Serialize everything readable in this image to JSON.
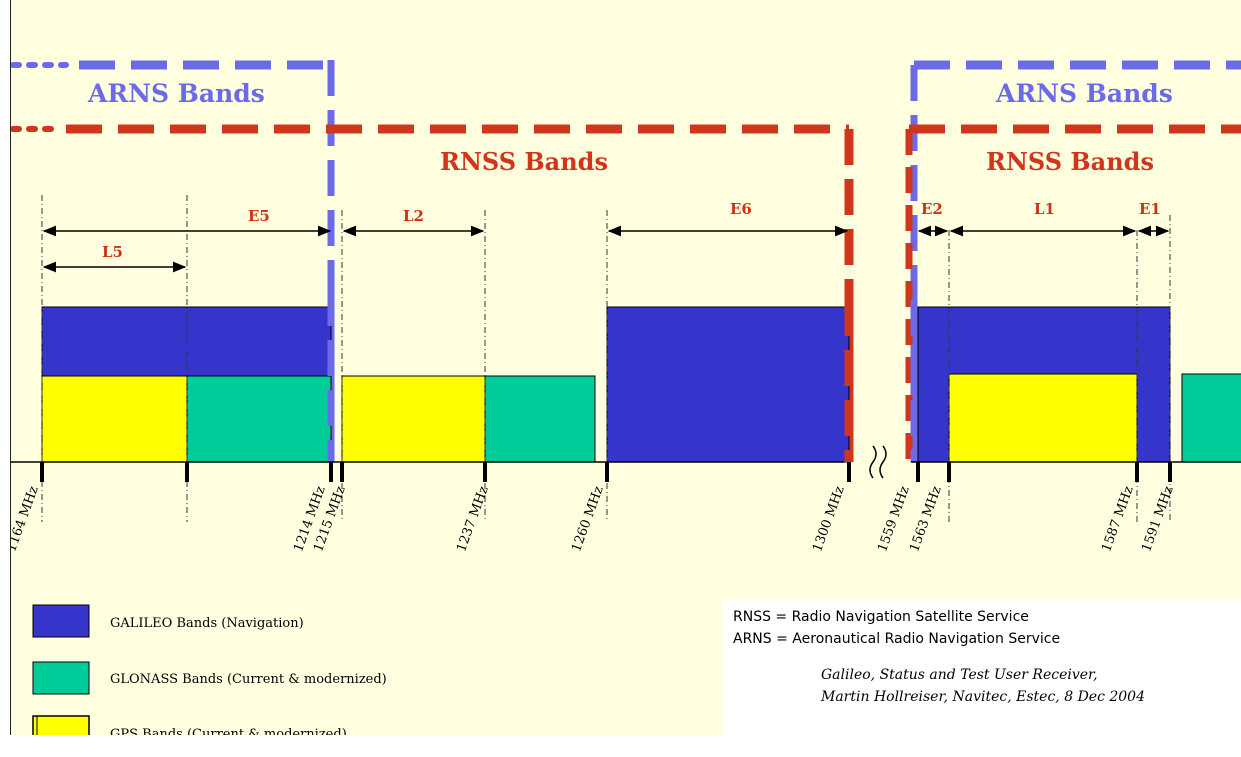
{
  "headers": {
    "arns_left": "ARNS Bands",
    "arns_right": "ARNS Bands",
    "rnss_center": "RNSS Bands",
    "rnss_right": "RNSS Bands"
  },
  "band_labels": {
    "e5": "E5",
    "l5": "L5",
    "l2": "L2",
    "e6": "E6",
    "e2": "E2",
    "l1": "L1",
    "e1": "E1"
  },
  "frequencies": {
    "f1164": "1164 MHz",
    "f1214": "1214 MHz",
    "f1215": "1215 MHz",
    "f1237": "1237 MHz",
    "f1260": "1260 MHz",
    "f1300": "1300 MHz",
    "f1559": "1559 MHz",
    "f1563": "1563 MHz",
    "f1587": "1587 MHz",
    "f1591": "1591 MHz"
  },
  "legend": {
    "galileo": "GALILEO Bands (Navigation)",
    "glonass": "GLONASS Bands (Current & modernized)",
    "gps": "GPS Bands (Current & modernized)"
  },
  "colors": {
    "galileo": "#3535cc",
    "glonass": "#00cc99",
    "gps": "#ffff00",
    "arns": "#6b6bea",
    "rnss": "#d1351b",
    "background": "#ffffe0"
  },
  "note": {
    "rnss_def": "RNSS = Radio Navigation Satellite Service",
    "arns_def": "ARNS = Aeronautical Radio Navigation Service",
    "cite_line1": "Galileo, Status and Test User Receiver,",
    "cite_line2": "Martin Hollreiser, Navitec, Estec, 8 Dec 2004"
  }
}
